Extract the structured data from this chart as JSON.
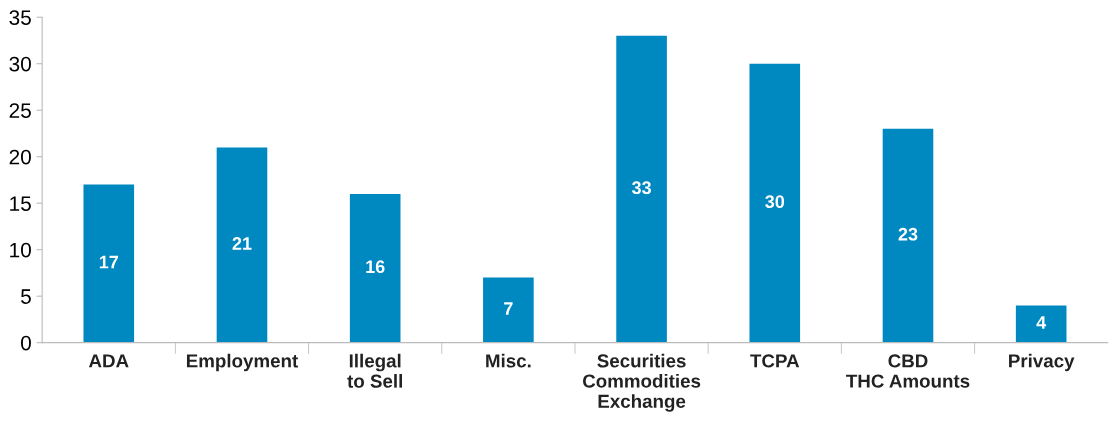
{
  "chart_data": {
    "type": "bar",
    "categories": [
      "ADA",
      "Employment",
      "Illegal\nto Sell",
      "Misc.",
      "Securities\nCommodities\nExchange",
      "TCPA",
      "CBD\nTHC Amounts",
      "Privacy"
    ],
    "values": [
      17,
      21,
      16,
      7,
      33,
      30,
      23,
      4
    ],
    "color": "#0088c0",
    "ylim": [
      0,
      35
    ],
    "yticks": [
      0,
      5,
      10,
      15,
      20,
      25,
      30,
      35
    ],
    "data_labels": true,
    "grid": false,
    "legend": false
  }
}
